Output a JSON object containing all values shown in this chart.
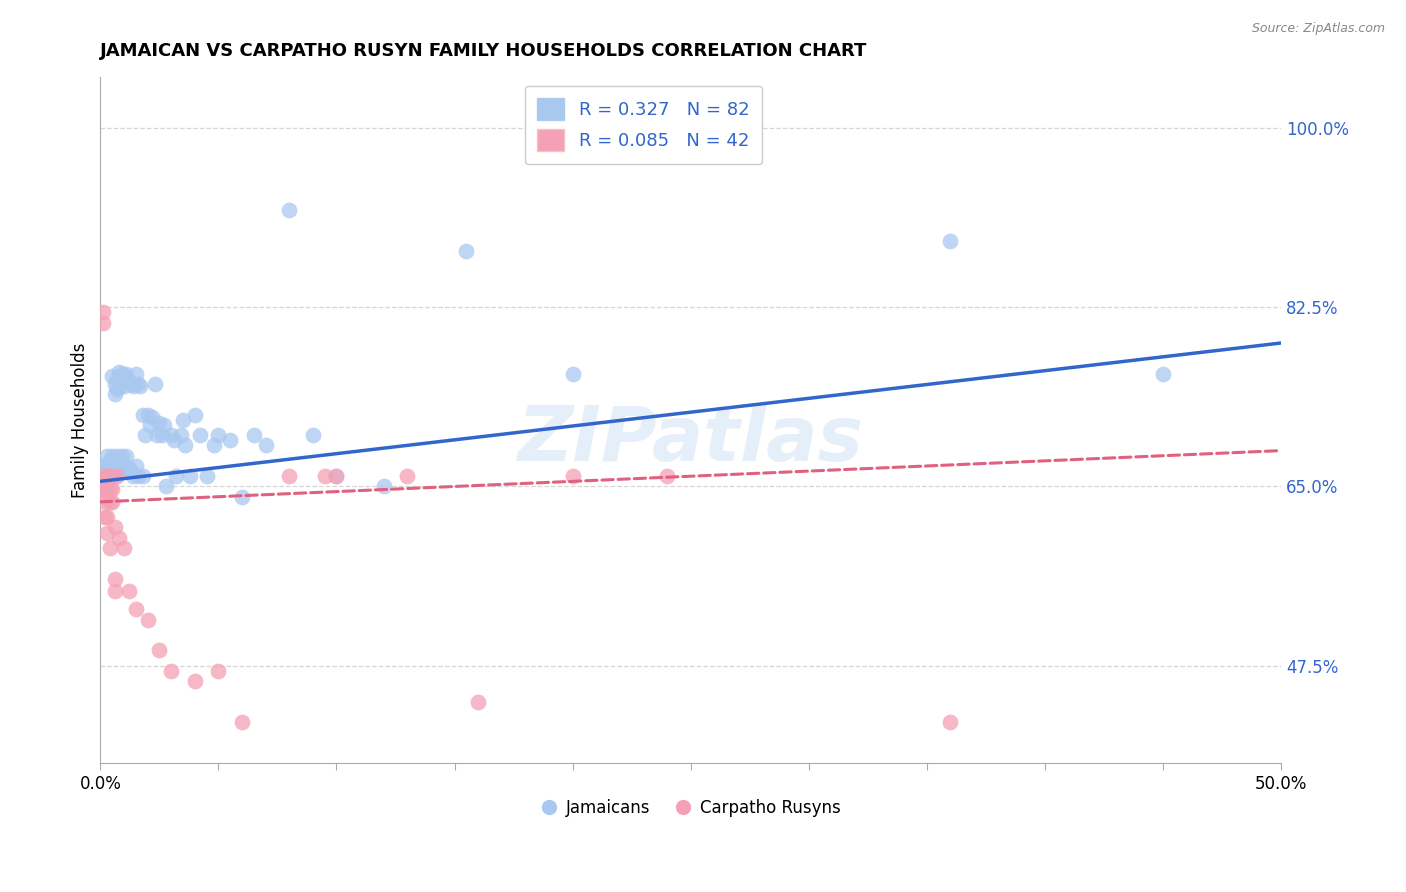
{
  "title": "JAMAICAN VS CARPATHO RUSYN FAMILY HOUSEHOLDS CORRELATION CHART",
  "source": "Source: ZipAtlas.com",
  "ylabel": "Family Households",
  "ytick_labels": [
    "100.0%",
    "82.5%",
    "65.0%",
    "47.5%"
  ],
  "ytick_values": [
    1.0,
    0.825,
    0.65,
    0.475
  ],
  "xmin": 0.0,
  "xmax": 0.5,
  "ymin": 0.38,
  "ymax": 1.05,
  "legend_r1": "R = 0.327   N = 82",
  "legend_r2": "R = 0.085   N = 42",
  "jamaican_color": "#A8C8F0",
  "carpatho_color": "#F4A0B5",
  "trend_jamaican_color": "#3366CC",
  "trend_carpatho_color": "#E06080",
  "jamaican_scatter_x": [
    0.001,
    0.001,
    0.002,
    0.002,
    0.002,
    0.003,
    0.003,
    0.003,
    0.003,
    0.004,
    0.004,
    0.004,
    0.005,
    0.005,
    0.005,
    0.005,
    0.006,
    0.006,
    0.006,
    0.006,
    0.007,
    0.007,
    0.007,
    0.007,
    0.008,
    0.008,
    0.008,
    0.009,
    0.009,
    0.009,
    0.01,
    0.01,
    0.01,
    0.011,
    0.011,
    0.012,
    0.012,
    0.013,
    0.013,
    0.014,
    0.014,
    0.015,
    0.015,
    0.016,
    0.016,
    0.017,
    0.018,
    0.018,
    0.019,
    0.02,
    0.021,
    0.022,
    0.023,
    0.024,
    0.025,
    0.026,
    0.027,
    0.028,
    0.03,
    0.031,
    0.032,
    0.034,
    0.035,
    0.036,
    0.038,
    0.04,
    0.042,
    0.045,
    0.048,
    0.05,
    0.055,
    0.06,
    0.065,
    0.07,
    0.08,
    0.09,
    0.1,
    0.12,
    0.155,
    0.2,
    0.36,
    0.45
  ],
  "jamaican_scatter_y": [
    0.67,
    0.66,
    0.665,
    0.658,
    0.65,
    0.672,
    0.68,
    0.662,
    0.655,
    0.675,
    0.668,
    0.66,
    0.68,
    0.67,
    0.758,
    0.66,
    0.75,
    0.74,
    0.67,
    0.66,
    0.755,
    0.745,
    0.68,
    0.665,
    0.762,
    0.748,
    0.67,
    0.76,
    0.68,
    0.668,
    0.758,
    0.748,
    0.67,
    0.76,
    0.68,
    0.752,
    0.668,
    0.75,
    0.665,
    0.748,
    0.66,
    0.76,
    0.67,
    0.75,
    0.66,
    0.748,
    0.72,
    0.66,
    0.7,
    0.72,
    0.71,
    0.718,
    0.75,
    0.7,
    0.712,
    0.7,
    0.71,
    0.65,
    0.7,
    0.695,
    0.66,
    0.7,
    0.715,
    0.69,
    0.66,
    0.72,
    0.7,
    0.66,
    0.69,
    0.7,
    0.695,
    0.64,
    0.7,
    0.69,
    0.92,
    0.7,
    0.66,
    0.65,
    0.88,
    0.76,
    0.89,
    0.76
  ],
  "carpatho_scatter_x": [
    0.001,
    0.001,
    0.001,
    0.001,
    0.002,
    0.002,
    0.002,
    0.002,
    0.003,
    0.003,
    0.003,
    0.003,
    0.003,
    0.004,
    0.004,
    0.004,
    0.004,
    0.005,
    0.005,
    0.005,
    0.006,
    0.006,
    0.006,
    0.007,
    0.008,
    0.01,
    0.012,
    0.015,
    0.02,
    0.025,
    0.03,
    0.04,
    0.05,
    0.06,
    0.08,
    0.1,
    0.13,
    0.16,
    0.2,
    0.24,
    0.36,
    0.095
  ],
  "carpatho_scatter_y": [
    0.82,
    0.81,
    0.66,
    0.65,
    0.66,
    0.648,
    0.635,
    0.62,
    0.66,
    0.648,
    0.638,
    0.62,
    0.605,
    0.66,
    0.648,
    0.635,
    0.59,
    0.66,
    0.648,
    0.635,
    0.56,
    0.548,
    0.61,
    0.66,
    0.6,
    0.59,
    0.548,
    0.53,
    0.52,
    0.49,
    0.47,
    0.46,
    0.47,
    0.42,
    0.66,
    0.66,
    0.66,
    0.44,
    0.66,
    0.66,
    0.42,
    0.66
  ],
  "jamaican_trend_x": [
    0.0,
    0.5
  ],
  "jamaican_trend_y": [
    0.655,
    0.79
  ],
  "carpatho_trend_x": [
    0.0,
    0.5
  ],
  "carpatho_trend_y": [
    0.635,
    0.685
  ],
  "watermark": "ZIPatlas",
  "right_axis_color": "#3366CC",
  "grid_color": "#CCCCCC",
  "axis_color": "#AAAAAA"
}
